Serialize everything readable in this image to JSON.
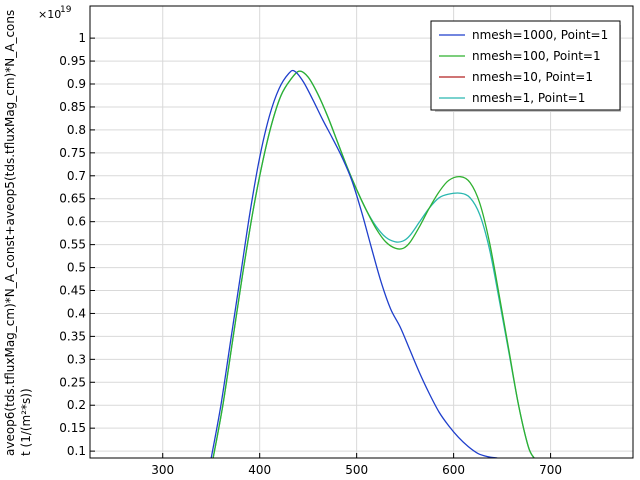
{
  "chart_data": {
    "type": "line",
    "xlabel": "",
    "ylabel_lines": [
      "aveop6(tds.tfluxMag_cm)*N_A_const+aveop5(tds.tfluxMag_cm)*N_A_cons",
      "t (1/(m²*s))"
    ],
    "y_multiplier_base": "×10",
    "y_multiplier_exp": "19",
    "xlim": [
      225,
      785
    ],
    "ylim": [
      0.085,
      1.07
    ],
    "xticks": [
      300,
      400,
      500,
      600,
      700
    ],
    "yticks": [
      0.1,
      0.15,
      0.2,
      0.25,
      0.3,
      0.35,
      0.4,
      0.45,
      0.5,
      0.55,
      0.6,
      0.65,
      0.7,
      0.75,
      0.8,
      0.85,
      0.9,
      0.95,
      1
    ],
    "ytick_labels": [
      "0.1",
      "0.15",
      "0.2",
      "0.25",
      "0.3",
      "0.35",
      "0.4",
      "0.45",
      "0.5",
      "0.55",
      "0.6",
      "0.65",
      "0.7",
      "0.75",
      "0.8",
      "0.85",
      "0.9",
      "0.95",
      "1"
    ],
    "grid": true,
    "legend_position": "top-right",
    "series": [
      {
        "name": "nmesh=1000, Point=1",
        "color": "#1f3fcc",
        "x": [
          350,
          360,
          370,
          380,
          390,
          400,
          410,
          420,
          430,
          436,
          445,
          455,
          465,
          475,
          485,
          495,
          505,
          515,
          525,
          535,
          545,
          555,
          565,
          575,
          585,
          595,
          605,
          615,
          625,
          635,
          645
        ],
        "y": [
          0.085,
          0.2,
          0.34,
          0.48,
          0.62,
          0.74,
          0.83,
          0.89,
          0.923,
          0.928,
          0.905,
          0.865,
          0.822,
          0.782,
          0.74,
          0.69,
          0.622,
          0.545,
          0.47,
          0.41,
          0.37,
          0.32,
          0.27,
          0.225,
          0.185,
          0.155,
          0.13,
          0.11,
          0.095,
          0.088,
          0.085
        ]
      },
      {
        "name": "nmesh=100, Point=1",
        "color": "#2fb02f",
        "x": [
          352,
          362,
          372,
          382,
          392,
          402,
          412,
          422,
          432,
          441,
          450,
          460,
          470,
          480,
          490,
          500,
          510,
          520,
          530,
          540,
          548,
          555,
          565,
          575,
          585,
          595,
          607,
          617,
          627,
          637,
          647,
          657,
          667,
          677,
          683
        ],
        "y": [
          0.085,
          0.2,
          0.34,
          0.48,
          0.61,
          0.72,
          0.81,
          0.875,
          0.91,
          0.928,
          0.915,
          0.878,
          0.83,
          0.775,
          0.72,
          0.67,
          0.625,
          0.585,
          0.556,
          0.542,
          0.542,
          0.555,
          0.59,
          0.63,
          0.665,
          0.69,
          0.698,
          0.685,
          0.64,
          0.555,
          0.44,
          0.32,
          0.2,
          0.11,
          0.085
        ]
      },
      {
        "name": "nmesh=10, Point=1",
        "color": "#b22222",
        "x": [],
        "y": []
      },
      {
        "name": "nmesh=1, Point=1",
        "color": "#2ab7b0",
        "x": [
          352,
          362,
          372,
          382,
          392,
          402,
          412,
          422,
          432,
          441,
          450,
          460,
          470,
          480,
          490,
          500,
          510,
          520,
          530,
          540,
          548,
          555,
          565,
          575,
          585,
          595,
          607,
          617,
          627,
          637,
          647,
          657,
          667,
          677,
          683
        ],
        "y": [
          0.085,
          0.2,
          0.34,
          0.48,
          0.61,
          0.72,
          0.81,
          0.875,
          0.91,
          0.928,
          0.915,
          0.878,
          0.83,
          0.775,
          0.72,
          0.67,
          0.625,
          0.59,
          0.566,
          0.556,
          0.558,
          0.57,
          0.6,
          0.63,
          0.652,
          0.66,
          0.662,
          0.652,
          0.615,
          0.54,
          0.43,
          0.315,
          0.2,
          0.11,
          0.085
        ]
      }
    ]
  }
}
